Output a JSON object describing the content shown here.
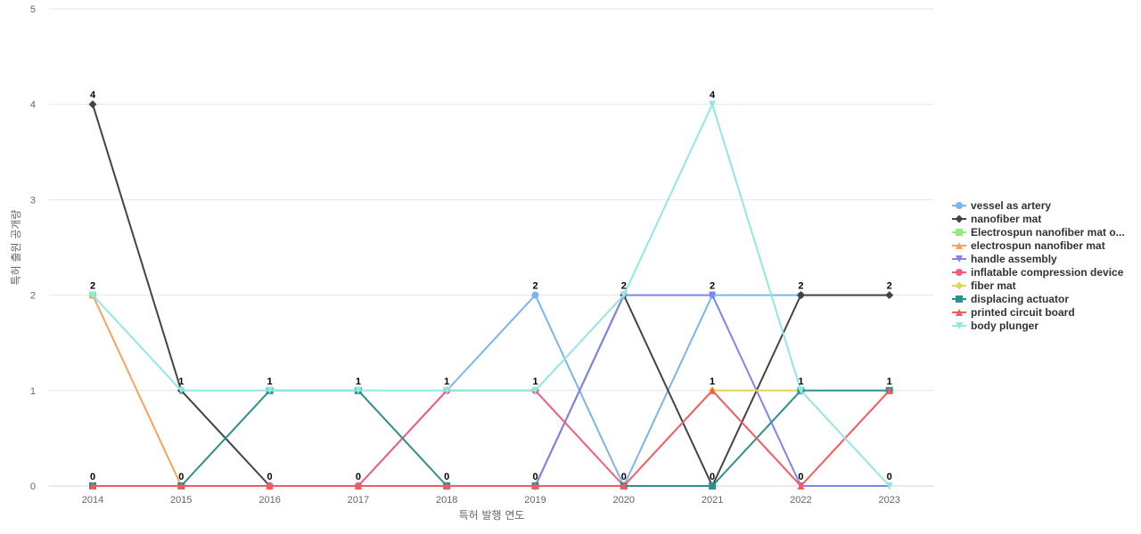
{
  "chart_data": {
    "type": "line",
    "title": "",
    "xlabel": "특허 발행 연도",
    "ylabel": "특허 출원 공개량",
    "x": [
      "2014",
      "2015",
      "2016",
      "2017",
      "2018",
      "2019",
      "2020",
      "2021",
      "2022",
      "2023"
    ],
    "ylim": [
      0,
      5
    ],
    "yticks": [
      0,
      1,
      2,
      3,
      4,
      5
    ],
    "grid": true,
    "legend_position": "right",
    "series": [
      {
        "name": "vessel as artery",
        "color": "#7cb5ec",
        "marker": "circle",
        "values": [
          0,
          0,
          0,
          0,
          1,
          2,
          0,
          2,
          2,
          null
        ]
      },
      {
        "name": "nanofiber mat",
        "color": "#434348",
        "marker": "diamond",
        "values": [
          4,
          1,
          0,
          0,
          0,
          0,
          2,
          0,
          2,
          2
        ]
      },
      {
        "name": "Electrospun nanofiber mat o...",
        "color": "#90ed7d",
        "marker": "square",
        "values": [
          2,
          null,
          null,
          null,
          null,
          null,
          null,
          null,
          null,
          null
        ]
      },
      {
        "name": "electrospun nanofiber mat",
        "color": "#f7a35c",
        "marker": "triangle",
        "values": [
          2,
          0,
          0,
          0,
          0,
          0,
          0,
          null,
          null,
          null
        ]
      },
      {
        "name": "handle assembly",
        "color": "#8085e9",
        "marker": "triangle-down",
        "values": [
          null,
          null,
          null,
          null,
          null,
          0,
          2,
          2,
          0,
          0
        ]
      },
      {
        "name": "inflatable compression device",
        "color": "#f15c80",
        "marker": "circle",
        "values": [
          0,
          0,
          0,
          0,
          1,
          1,
          0,
          null,
          null,
          null
        ]
      },
      {
        "name": "fiber mat",
        "color": "#e4d354",
        "marker": "diamond",
        "values": [
          null,
          null,
          null,
          null,
          null,
          null,
          null,
          1,
          1,
          null
        ]
      },
      {
        "name": "displacing actuator",
        "color": "#2b908f",
        "marker": "square",
        "values": [
          0,
          0,
          1,
          1,
          0,
          0,
          0,
          0,
          1,
          1
        ]
      },
      {
        "name": "printed circuit board",
        "color": "#f45b5b",
        "marker": "triangle",
        "values": [
          0,
          0,
          0,
          0,
          0,
          0,
          0,
          1,
          0,
          1
        ]
      },
      {
        "name": "body plunger",
        "color": "#91e8e1",
        "marker": "triangle-down",
        "values": [
          2,
          1,
          1,
          1,
          1,
          1,
          2,
          4,
          1,
          0
        ]
      }
    ],
    "data_labels": [
      {
        "x": "2014",
        "text": "4",
        "y": 4
      },
      {
        "x": "2014",
        "text": "2",
        "y": 2
      },
      {
        "x": "2014",
        "text": "0",
        "y": 0
      },
      {
        "x": "2015",
        "text": "1",
        "y": 1
      },
      {
        "x": "2015",
        "text": "0",
        "y": 0
      },
      {
        "x": "2016",
        "text": "1",
        "y": 1
      },
      {
        "x": "2016",
        "text": "0",
        "y": 0
      },
      {
        "x": "2017",
        "text": "1",
        "y": 1
      },
      {
        "x": "2017",
        "text": "0",
        "y": 0
      },
      {
        "x": "2018",
        "text": "1",
        "y": 1
      },
      {
        "x": "2018",
        "text": "0",
        "y": 0
      },
      {
        "x": "2019",
        "text": "2",
        "y": 2
      },
      {
        "x": "2019",
        "text": "1",
        "y": 1
      },
      {
        "x": "2019",
        "text": "0",
        "y": 0
      },
      {
        "x": "2020",
        "text": "2",
        "y": 2
      },
      {
        "x": "2020",
        "text": "0",
        "y": 0
      },
      {
        "x": "2021",
        "text": "4",
        "y": 4
      },
      {
        "x": "2021",
        "text": "2",
        "y": 2
      },
      {
        "x": "2021",
        "text": "1",
        "y": 1
      },
      {
        "x": "2021",
        "text": "0",
        "y": 0
      },
      {
        "x": "2022",
        "text": "2",
        "y": 2
      },
      {
        "x": "2022",
        "text": "1",
        "y": 1
      },
      {
        "x": "2022",
        "text": "0",
        "y": 0
      },
      {
        "x": "2023",
        "text": "2",
        "y": 2
      },
      {
        "x": "2023",
        "text": "1",
        "y": 1
      },
      {
        "x": "2023",
        "text": "0",
        "y": 0
      }
    ]
  }
}
